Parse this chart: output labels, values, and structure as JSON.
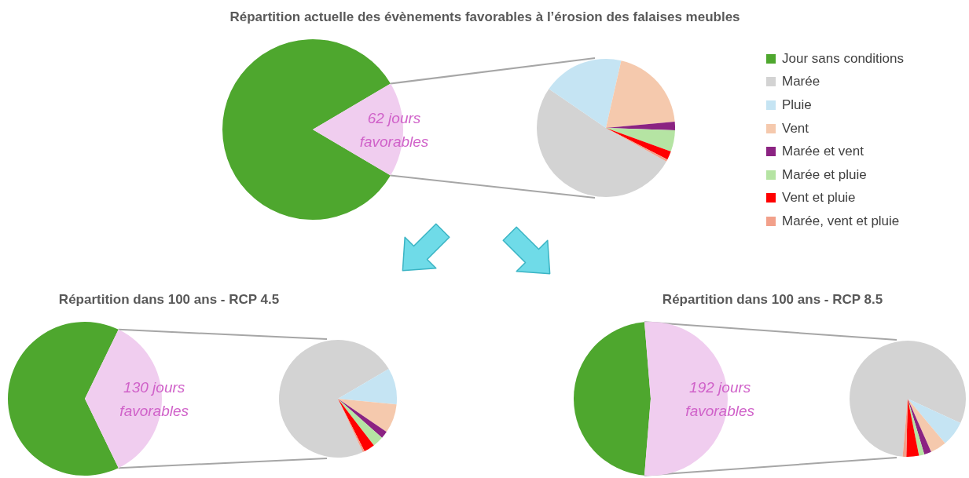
{
  "chart_data": [
    {
      "type": "pie",
      "title": "Répartition actuelle des évènements favorables à l’érosion des falaises meubles",
      "categories": [
        "Jour sans conditions",
        null
      ],
      "values": [
        303,
        62
      ],
      "colors": [
        "#4ea72e",
        "#f0cdef"
      ],
      "value_labels": [
        null,
        "62 jours favorables"
      ],
      "legend": "right"
    },
    {
      "type": "pie",
      "categories": [
        "Marée",
        "Pluie",
        "Vent",
        "Marée et vent",
        "Marée et pluie",
        "Vent et pluie",
        "Marée, vent et pluie"
      ],
      "values": [
        51.5,
        19,
        20,
        2,
        5,
        2,
        0.5
      ],
      "colors": [
        "#d3d3d3",
        "#c5e4f3",
        "#f5c9ad",
        "#8b2382",
        "#b5e4a3",
        "#ff0000",
        "#f2a08a"
      ],
      "legend": "right"
    },
    {
      "type": "pie",
      "title": "Répartition dans 100 ans - RCP 4.5",
      "categories": [
        null,
        null
      ],
      "values": [
        235,
        130
      ],
      "colors": [
        "#4ea72e",
        "#f0cdef"
      ],
      "value_labels": [
        null,
        "130 jours favorables"
      ]
    },
    {
      "type": "pie",
      "categories": [
        null,
        null,
        null,
        null,
        null,
        null,
        null
      ],
      "values": [
        73.5,
        10,
        8,
        2,
        3,
        3,
        0.5
      ],
      "colors": [
        "#d3d3d3",
        "#c5e4f3",
        "#f5c9ad",
        "#8b2382",
        "#b5e4a3",
        "#ff0000",
        "#f2a08a"
      ]
    },
    {
      "type": "pie",
      "title": "Répartition dans 100 ans - RCP 8.5",
      "categories": [
        null,
        null
      ],
      "values": [
        173,
        192
      ],
      "colors": [
        "#4ea72e",
        "#f0cdef"
      ],
      "value_labels": [
        null,
        "192 jours favorables"
      ]
    },
    {
      "type": "pie",
      "categories": [
        null,
        null,
        null,
        null,
        null,
        null,
        null
      ],
      "values": [
        80.5,
        7,
        4.5,
        2,
        1.5,
        3.5,
        1
      ],
      "colors": [
        "#d3d3d3",
        "#c5e4f3",
        "#f5c9ad",
        "#8b2382",
        "#b5e4a3",
        "#ff0000",
        "#f2a08a"
      ]
    }
  ]
}
